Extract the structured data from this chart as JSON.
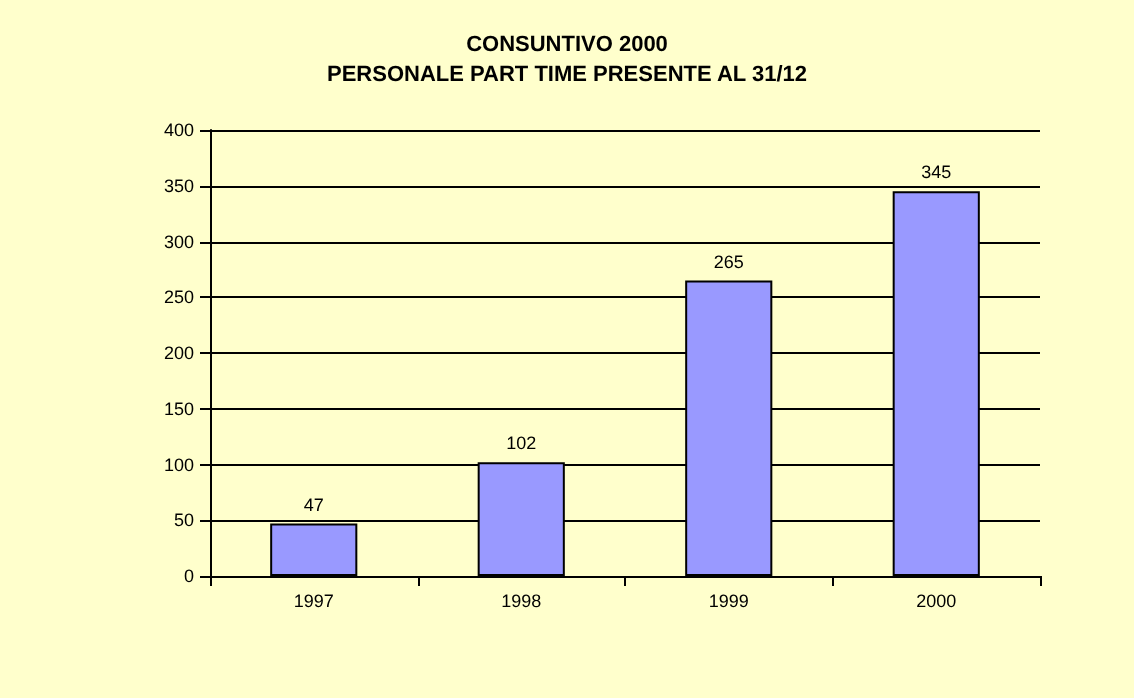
{
  "chart_data": {
    "type": "bar",
    "title": "CONSUNTIVO 2000",
    "subtitle": "PERSONALE PART TIME PRESENTE AL 31/12",
    "categories": [
      "1997",
      "1998",
      "1999",
      "2000"
    ],
    "values": [
      47,
      102,
      265,
      345
    ],
    "color": "#9999ff",
    "ylim": [
      0,
      400
    ],
    "yticks": [
      0,
      50,
      100,
      150,
      200,
      250,
      300,
      350,
      400
    ],
    "grid": "y",
    "data_labels": true
  }
}
